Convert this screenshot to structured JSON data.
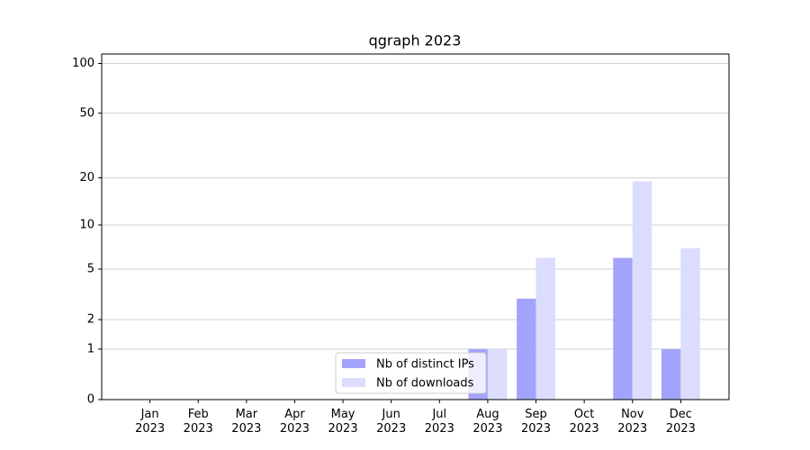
{
  "chart_data": {
    "type": "bar",
    "title": "qgraph 2023",
    "categories": [
      "Jan\n2023",
      "Feb\n2023",
      "Mar\n2023",
      "Apr\n2023",
      "May\n2023",
      "Jun\n2023",
      "Jul\n2023",
      "Aug\n2023",
      "Sep\n2023",
      "Oct\n2023",
      "Nov\n2023",
      "Dec\n2023"
    ],
    "series": [
      {
        "name": "Nb of distinct IPs",
        "color": "#a3a3fb",
        "values": [
          0,
          0,
          0,
          0,
          0,
          0,
          0,
          1,
          3,
          0,
          6,
          1
        ]
      },
      {
        "name": "Nb of downloads",
        "color": "#dcdcfd",
        "values": [
          0,
          0,
          0,
          0,
          0,
          0,
          0,
          1,
          6,
          0,
          19,
          7
        ]
      }
    ],
    "yscale": "log1p",
    "ylim": [
      0,
      114
    ],
    "yticks": [
      0,
      1,
      2,
      5,
      10,
      20,
      50,
      100
    ],
    "grid": true,
    "legend": "lower center"
  }
}
